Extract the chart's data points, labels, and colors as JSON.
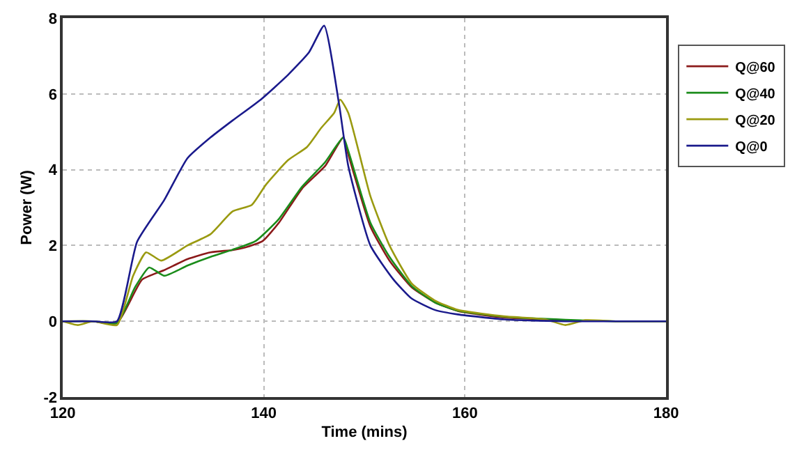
{
  "chart_data": {
    "type": "line",
    "xlabel": "Time (mins)",
    "ylabel": "Power (W)",
    "xlim": [
      120,
      180
    ],
    "xticks": [
      120,
      140,
      160,
      180
    ],
    "ylim": [
      -2,
      8
    ],
    "yticks": [
      -2,
      0,
      2,
      4,
      6,
      8
    ],
    "grid": true,
    "legend": "top right",
    "marker": "none",
    "line_style": "solid",
    "series": [
      {
        "name": "Q@60",
        "color": "#8b1a1a",
        "x": [
          120,
          123,
          125.4,
          127.9,
          130.1,
          132.4,
          134.7,
          136.9,
          138.2,
          139.9,
          141.5,
          143.8,
          146.1,
          147.9,
          148.4,
          150.6,
          152.5,
          154.7,
          157,
          159.3,
          163.9,
          170
        ],
        "values": [
          0,
          0,
          -0.05,
          1.1,
          1.35,
          1.64,
          1.82,
          1.88,
          1.95,
          2.12,
          2.6,
          3.5,
          4.1,
          4.85,
          4.4,
          2.5,
          1.6,
          0.9,
          0.5,
          0.27,
          0.1,
          0.03
        ]
      },
      {
        "name": "Q@40",
        "color": "#1a8c1a",
        "x": [
          120,
          123,
          125.4,
          127.2,
          128.6,
          130.1,
          132.4,
          134.7,
          136.9,
          139.2,
          141.5,
          143.8,
          146.1,
          147.9,
          148.4,
          150.6,
          152.5,
          154.7,
          157,
          159.3,
          163.9,
          170,
          175,
          180
        ],
        "values": [
          0,
          0,
          -0.05,
          0.9,
          1.42,
          1.2,
          1.47,
          1.7,
          1.89,
          2.12,
          2.7,
          3.55,
          4.2,
          4.85,
          4.5,
          2.6,
          1.7,
          0.93,
          0.5,
          0.28,
          0.12,
          0.04,
          0,
          0
        ]
      },
      {
        "name": "Q@20",
        "color": "#9a9a10",
        "x": [
          120,
          121.5,
          123,
          125.4,
          127,
          128.3,
          129.8,
          132.4,
          134.7,
          136.9,
          138.8,
          140.2,
          142.4,
          144.3,
          145.7,
          147,
          147.6,
          148.4,
          150.6,
          152.5,
          154.7,
          157,
          159.3,
          163.9,
          168,
          170,
          172,
          175,
          180
        ],
        "values": [
          0,
          -0.1,
          0,
          -0.1,
          1.2,
          1.82,
          1.6,
          2.0,
          2.3,
          2.9,
          3.07,
          3.6,
          4.25,
          4.6,
          5.1,
          5.5,
          5.85,
          5.5,
          3.3,
          2.0,
          1.0,
          0.55,
          0.3,
          0.13,
          0.05,
          -0.1,
          0.03,
          0,
          0
        ]
      },
      {
        "name": "Q@0",
        "color": "#1a1a8c",
        "x": [
          120,
          123,
          125.4,
          127.4,
          130.1,
          132.4,
          134.7,
          136.9,
          139.7,
          142.4,
          144.5,
          146,
          147.5,
          148.4,
          150.6,
          152.9,
          154.7,
          157,
          159.3,
          163.9,
          170,
          175,
          180
        ],
        "values": [
          0,
          0,
          0,
          2.1,
          3.2,
          4.3,
          4.85,
          5.3,
          5.85,
          6.5,
          7.1,
          7.8,
          5.7,
          4.1,
          2.0,
          1.1,
          0.6,
          0.3,
          0.18,
          0.05,
          0,
          0,
          0
        ]
      }
    ]
  }
}
